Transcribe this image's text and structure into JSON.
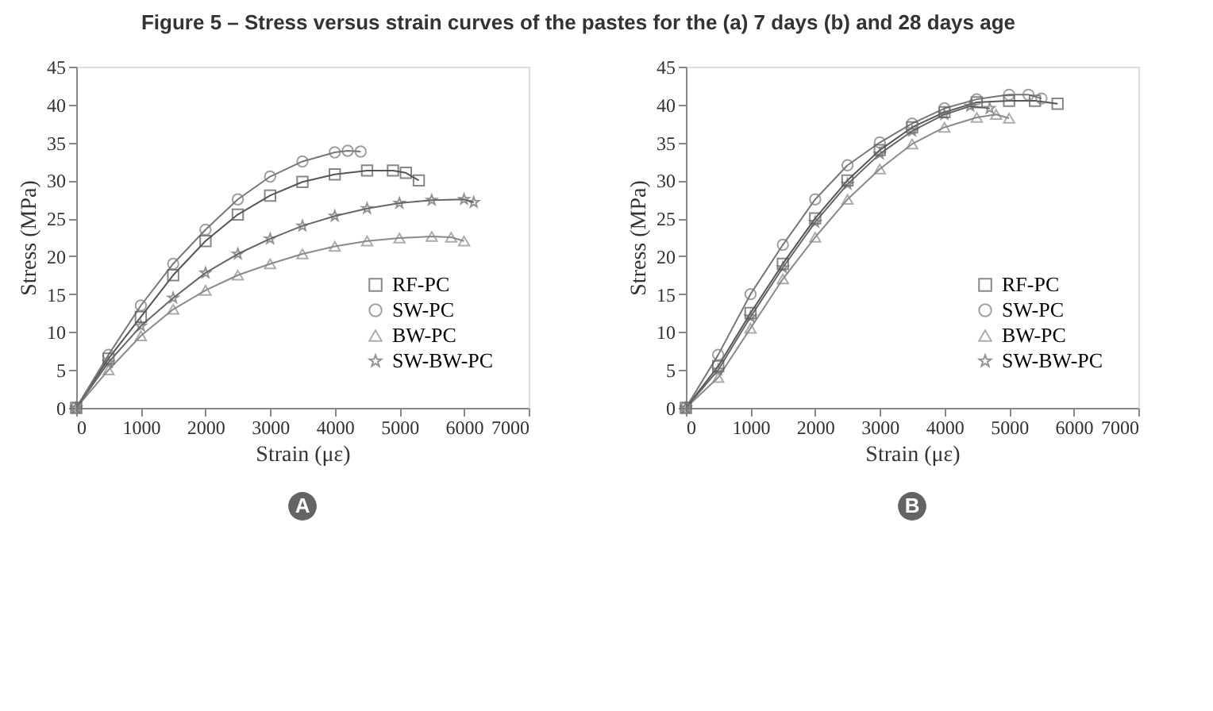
{
  "chart_data": [
    {
      "type": "line",
      "title": "Figure 5 – Stress versus strain curves of the pastes for the (a) 7 days (b) and 28 days age",
      "xlabel": "Strain (με)",
      "ylabel": "Stress (MPa)",
      "xlim": [
        0,
        7000
      ],
      "xticks": [
        0,
        1000,
        2000,
        3000,
        4000,
        5000,
        6000,
        7000
      ],
      "ylim": [
        0,
        45
      ],
      "yticks": [
        0,
        5,
        10,
        15,
        20,
        25,
        30,
        35,
        40,
        45
      ],
      "grid": false,
      "legend": "bottom right",
      "annotations": [
        "A"
      ],
      "series": [
        {
          "name": "RF-PC",
          "color": "#555555",
          "marker": "square",
          "x": [
            0,
            500,
            1000,
            1500,
            2000,
            2500,
            3000,
            3500,
            4000,
            4500,
            4900,
            5100,
            5300
          ],
          "values": [
            0,
            6.5,
            12,
            17.5,
            22,
            25.5,
            28,
            29.8,
            30.8,
            31.3,
            31.3,
            31,
            30
          ]
        },
        {
          "name": "SW-PC",
          "color": "#777777",
          "marker": "circle",
          "x": [
            0,
            500,
            1000,
            1500,
            2000,
            2500,
            3000,
            3500,
            4000,
            4200,
            4400
          ],
          "values": [
            0,
            7,
            13.5,
            19,
            23.5,
            27.5,
            30.5,
            32.5,
            33.7,
            33.9,
            33.8
          ]
        },
        {
          "name": "BW-PC",
          "color": "#8a8a8a",
          "marker": "triangle",
          "x": [
            0,
            500,
            1000,
            1500,
            2000,
            2500,
            3000,
            3500,
            4000,
            4500,
            5000,
            5500,
            5800,
            6000
          ],
          "values": [
            0,
            5,
            9.5,
            13,
            15.5,
            17.5,
            19,
            20.3,
            21.3,
            22,
            22.4,
            22.6,
            22.5,
            22
          ]
        },
        {
          "name": "SW-BW-PC",
          "color": "#666666",
          "marker": "star",
          "x": [
            0,
            500,
            1000,
            1500,
            2000,
            2500,
            3000,
            3500,
            4000,
            4500,
            5000,
            5500,
            6000,
            6150
          ],
          "values": [
            0,
            6,
            10.8,
            14.5,
            17.8,
            20.3,
            22.3,
            24,
            25.3,
            26.3,
            27,
            27.4,
            27.5,
            27.1
          ]
        }
      ]
    },
    {
      "type": "line",
      "xlabel": "Strain (με)",
      "ylabel": "Stress (MPa)",
      "xlim": [
        0,
        7000
      ],
      "xticks": [
        0,
        1000,
        2000,
        3000,
        4000,
        5000,
        6000,
        7000
      ],
      "ylim": [
        0,
        45
      ],
      "yticks": [
        0,
        5,
        10,
        15,
        20,
        25,
        30,
        35,
        40,
        45
      ],
      "grid": false,
      "legend": "bottom right",
      "annotations": [
        "B"
      ],
      "series": [
        {
          "name": "RF-PC",
          "color": "#555555",
          "marker": "square",
          "x": [
            0,
            500,
            1000,
            1500,
            2000,
            2500,
            3000,
            3500,
            4000,
            4500,
            5000,
            5400,
            5750
          ],
          "values": [
            0,
            5.5,
            12.5,
            19,
            25,
            30,
            34,
            37,
            39,
            40.3,
            40.5,
            40.5,
            40.1
          ]
        },
        {
          "name": "SW-PC",
          "color": "#777777",
          "marker": "circle",
          "x": [
            0,
            500,
            1000,
            1500,
            2000,
            2500,
            3000,
            3500,
            4000,
            4500,
            5000,
            5300,
            5500
          ],
          "values": [
            0,
            7,
            15,
            21.5,
            27.5,
            32,
            35,
            37.5,
            39.5,
            40.7,
            41.3,
            41.3,
            40.8
          ]
        },
        {
          "name": "BW-PC",
          "color": "#8a8a8a",
          "marker": "triangle",
          "x": [
            0,
            500,
            1000,
            1500,
            2000,
            2500,
            3000,
            3500,
            4000,
            4500,
            4800,
            5000
          ],
          "values": [
            0,
            4,
            10.5,
            17,
            22.5,
            27.5,
            31.5,
            34.8,
            37,
            38.3,
            38.7,
            38.2
          ]
        },
        {
          "name": "SW-BW-PC",
          "color": "#666666",
          "marker": "star",
          "x": [
            0,
            500,
            1000,
            1500,
            2000,
            2500,
            3000,
            3500,
            4000,
            4400,
            4700
          ],
          "values": [
            0,
            5,
            12,
            18.5,
            24.5,
            29.5,
            33.5,
            36.5,
            38.7,
            39.8,
            39.5
          ]
        }
      ]
    }
  ]
}
